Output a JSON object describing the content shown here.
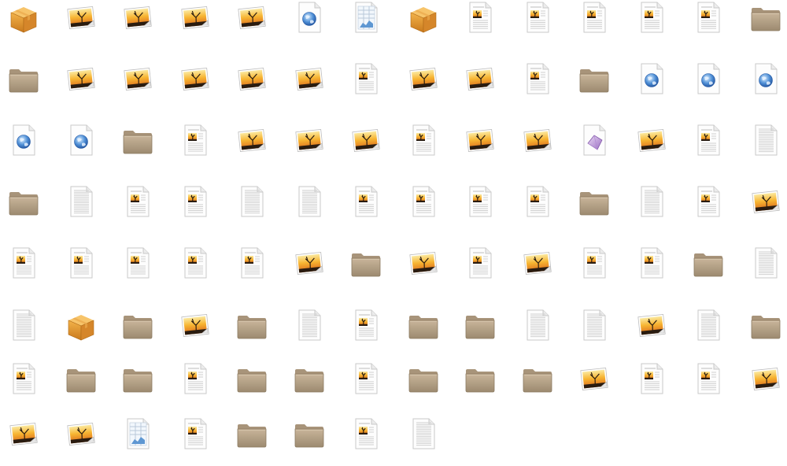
{
  "view": "icon-grid",
  "icon_legend": {
    "F": "folder-icon",
    "B": "package-icon",
    "I": "image-file-icon",
    "D": "document-image-icon",
    "T": "text-document-icon",
    "W": "html-file-icon",
    "S": "spreadsheet-icon",
    "V": "vector-graphic-icon"
  },
  "rows": [
    [
      "B",
      "I",
      "I",
      "I",
      "I",
      "W",
      "S",
      "B",
      "D",
      "D",
      "D",
      "D",
      "D",
      "F"
    ],
    [
      "F",
      "I",
      "I",
      "I",
      "I",
      "I",
      "D",
      "I",
      "I",
      "D",
      "F",
      "W",
      "W",
      "W"
    ],
    [
      "W",
      "W",
      "F",
      "D",
      "I",
      "I",
      "I",
      "D",
      "I",
      "I",
      "V",
      "I",
      "D",
      "T"
    ],
    [
      "F",
      "T",
      "D",
      "D",
      "T",
      "T",
      "D",
      "D",
      "D",
      "D",
      "F",
      "T",
      "D",
      "I"
    ],
    [
      "D",
      "D",
      "D",
      "D",
      "D",
      "I",
      "F",
      "I",
      "D",
      "I",
      "D",
      "D",
      "F",
      "T"
    ],
    [
      "T",
      "B",
      "F",
      "I",
      "F",
      "T",
      "D",
      "F",
      "F",
      "T",
      "T",
      "I",
      "T",
      "F"
    ],
    [
      "D",
      "F",
      "F",
      "D",
      "F",
      "F",
      "D",
      "F",
      "F",
      "F",
      "I",
      "D",
      "D",
      "I"
    ],
    [
      "I",
      "I",
      "S",
      "D",
      "F",
      "F",
      "D",
      "T"
    ]
  ]
}
